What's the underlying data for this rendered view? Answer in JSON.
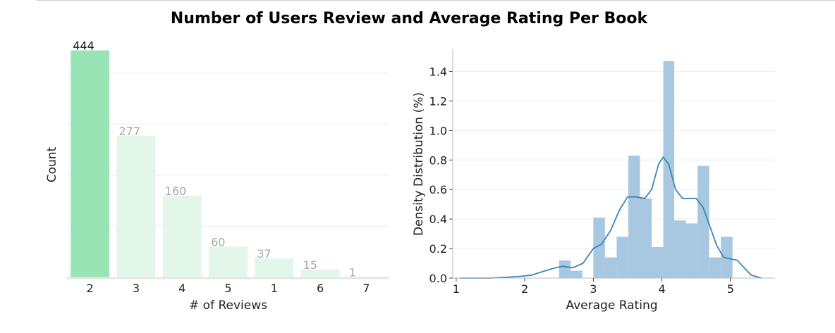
{
  "suptitle": "Number of Users Review and Average Rating Per Book",
  "chart_data": [
    {
      "type": "bar",
      "title": "",
      "xlabel": "# of Reviews",
      "ylabel": "Count",
      "categories": [
        "2",
        "3",
        "4",
        "5",
        "1",
        "6",
        "7"
      ],
      "values": [
        444,
        277,
        160,
        60,
        37,
        15,
        1
      ],
      "data_labels": [
        "444",
        "277",
        "160",
        "60",
        "37",
        "15",
        "1"
      ],
      "ylim": [
        0,
        460
      ],
      "y_ticks_shown": false,
      "grid": true,
      "colors": {
        "highlight": "#98e4b4",
        "other": "#e2f7ea",
        "highlight_label": "#1a1a1a",
        "other_label": "#a8a8a8",
        "baseline": "#e6e6e6"
      }
    },
    {
      "type": "histogram",
      "title": "",
      "xlabel": "Average Rating",
      "ylabel": "Density Distribution (%)",
      "xlim": [
        0.95,
        5.65
      ],
      "ylim": [
        0,
        1.55
      ],
      "x_ticks": [
        "1",
        "2",
        "3",
        "4",
        "5"
      ],
      "y_ticks": [
        "0.0",
        "0.2",
        "0.4",
        "0.6",
        "0.8",
        "1.0",
        "1.2",
        "1.4"
      ],
      "grid": true,
      "bins": [
        {
          "x0": 2.5,
          "x1": 2.67,
          "y": 0.12
        },
        {
          "x0": 2.67,
          "x1": 2.84,
          "y": 0.05
        },
        {
          "x0": 3.0,
          "x1": 3.17,
          "y": 0.41
        },
        {
          "x0": 3.17,
          "x1": 3.34,
          "y": 0.14
        },
        {
          "x0": 3.34,
          "x1": 3.51,
          "y": 0.28
        },
        {
          "x0": 3.51,
          "x1": 3.68,
          "y": 0.83
        },
        {
          "x0": 3.68,
          "x1": 3.85,
          "y": 0.54
        },
        {
          "x0": 3.85,
          "x1": 4.02,
          "y": 0.21
        },
        {
          "x0": 4.02,
          "x1": 4.18,
          "y": 1.47
        },
        {
          "x0": 4.18,
          "x1": 4.35,
          "y": 0.39
        },
        {
          "x0": 4.35,
          "x1": 4.52,
          "y": 0.37
        },
        {
          "x0": 4.52,
          "x1": 4.69,
          "y": 0.76
        },
        {
          "x0": 4.69,
          "x1": 4.86,
          "y": 0.14
        },
        {
          "x0": 4.86,
          "x1": 5.03,
          "y": 0.28
        }
      ],
      "kde": [
        [
          1.05,
          0.0
        ],
        [
          1.5,
          0.0
        ],
        [
          1.9,
          0.01
        ],
        [
          2.1,
          0.02
        ],
        [
          2.3,
          0.05
        ],
        [
          2.45,
          0.07
        ],
        [
          2.55,
          0.08
        ],
        [
          2.7,
          0.07
        ],
        [
          2.85,
          0.1
        ],
        [
          3.0,
          0.2
        ],
        [
          3.12,
          0.23
        ],
        [
          3.25,
          0.32
        ],
        [
          3.38,
          0.46
        ],
        [
          3.5,
          0.55
        ],
        [
          3.62,
          0.55
        ],
        [
          3.75,
          0.54
        ],
        [
          3.85,
          0.6
        ],
        [
          3.95,
          0.77
        ],
        [
          4.02,
          0.82
        ],
        [
          4.1,
          0.77
        ],
        [
          4.2,
          0.6
        ],
        [
          4.3,
          0.54
        ],
        [
          4.4,
          0.54
        ],
        [
          4.5,
          0.54
        ],
        [
          4.6,
          0.48
        ],
        [
          4.7,
          0.35
        ],
        [
          4.8,
          0.22
        ],
        [
          4.9,
          0.14
        ],
        [
          5.0,
          0.13
        ],
        [
          5.1,
          0.12
        ],
        [
          5.2,
          0.07
        ],
        [
          5.3,
          0.02
        ],
        [
          5.45,
          0.0
        ]
      ],
      "colors": {
        "bars": "#a7c8e0",
        "kde": "#3a87bd",
        "axis": "#bbbbbb"
      }
    }
  ]
}
